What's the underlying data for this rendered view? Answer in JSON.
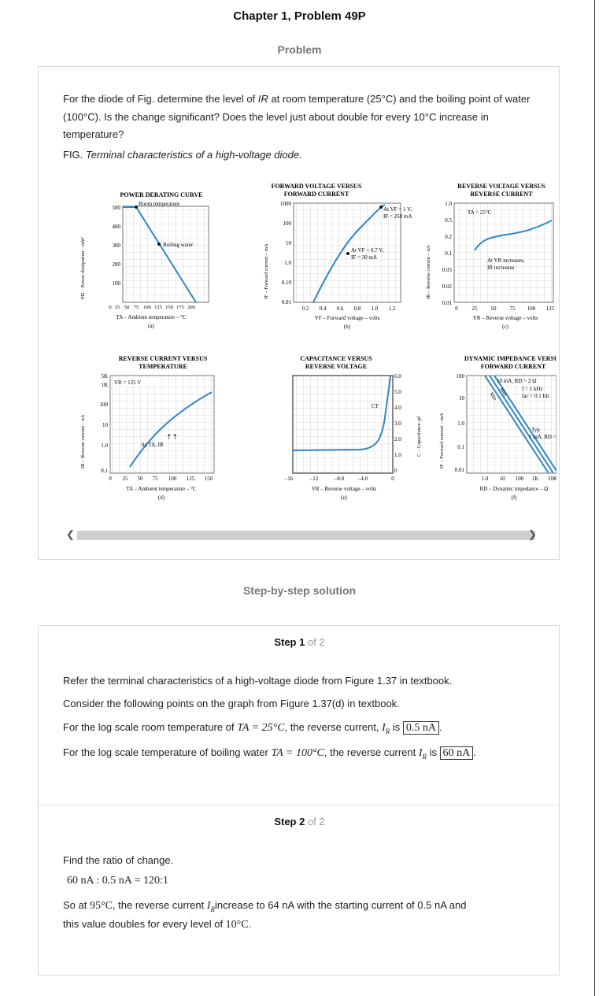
{
  "page": {
    "title": "Chapter 1, Problem 49P",
    "problem_label": "Problem",
    "solution_label": "Step-by-step solution"
  },
  "problem": {
    "text_1": "For the diode of Fig. determine the level of ",
    "text_ir": "IR",
    "text_2": " at room temperature (25°C) and the boiling point of water (100°C). Is the change significant? Does the level just about double for every 10°C increase in temperature?",
    "fig_prefix": "FIG. ",
    "fig_caption": "Terminal characteristics of a high-voltage diode."
  },
  "figure": {
    "a": {
      "title1": "POWER DERATING CURVE",
      "ylabel": "PD – Power dissipation – mW",
      "xlabel": "TA – Ambient temperature – °C",
      "tag": "(a)",
      "ann1": "Room temperature",
      "ann2": "Boiling water",
      "yticks": [
        "500",
        "400",
        "300",
        "200",
        "100"
      ],
      "xticks": [
        "0",
        "25",
        "50",
        "75",
        "100",
        "125",
        "150",
        "175",
        "200"
      ]
    },
    "b": {
      "title1": "FORWARD VOLTAGE VERSUS",
      "title2": "FORWARD CURRENT",
      "ylabel": "IF – Forward current – mA",
      "xlabel": "VF – Forward voltage – volts",
      "tag": "(b)",
      "ann1a": "At VF = 1 V,",
      "ann1b": "IF = 250 mA",
      "ann2a": "At VF = 0.7 V,",
      "ann2b": "IF = 30 mA",
      "yticks": [
        "1000",
        "100",
        "10",
        "1.0",
        "0.10",
        "0.01"
      ],
      "xticks": [
        "0.2",
        "0.4",
        "0.6",
        "0.8",
        "1.0",
        "1.2"
      ]
    },
    "c": {
      "title1": "REVERSE VOLTAGE VERSUS",
      "title2": "REVERSE CURRENT",
      "ylabel": "IR – Reverse current – nA",
      "xlabel": "VR – Reverse voltage – volts",
      "tag": "(c)",
      "ann1": "TA = 25°C",
      "ann2a": "At VR increases,",
      "ann2b": "IR increases",
      "yticks": [
        "1.0",
        "0.5",
        "0.2",
        "0.1",
        "0.05",
        "0.02",
        "0.01"
      ],
      "xticks": [
        "0",
        "25",
        "50",
        "75",
        "100",
        "125"
      ]
    },
    "d": {
      "title1": "REVERSE CURRENT VERSUS",
      "title2": "TEMPERATURE",
      "ylabel": "IR – Reverse current – nA",
      "xlabel": "TA – Ambient temperature – °C",
      "tag": "(d)",
      "ann1": "VR = 125 V",
      "ann2": "As TA, IR",
      "yticks": [
        "5K",
        "1K",
        "100",
        "10",
        "1.0",
        "0.1"
      ],
      "xticks": [
        "0",
        "25",
        "50",
        "75",
        "100",
        "125",
        "150"
      ]
    },
    "e": {
      "title1": "CAPACITANCE VERSUS",
      "title2": "REVERSE VOLTAGE",
      "ylabel": "C – Capacitance–pf",
      "xlabel": "VR – Reverse voltage – volts",
      "tag": "(e)",
      "ann1": "CT",
      "yticks": [
        "6.0",
        "5.0",
        "4.0",
        "3.0",
        "2.0",
        "1.0",
        "0"
      ],
      "xticks": [
        "–16",
        "–12",
        "–8.0",
        "–4.0",
        "0"
      ]
    },
    "f": {
      "title1": "DYNAMIC IMPEDANCE VERSUS",
      "title2": "FORWARD CURRENT",
      "ylabel": "IF – Forward current – mA",
      "xlabel": "RD – Dynamic impedance – Ω",
      "tag": "(f)",
      "ann1": "10 mA, RD = 2 Ω",
      "ann2": "f = 1 kHz",
      "ann3": "Iac = 0.1 Idc",
      "ann4": "Typ",
      "ann5": "1 mA, RD = 50",
      "ann6": "Max",
      "ann7": "Min",
      "yticks": [
        "100",
        "10",
        "1.0",
        "0.1",
        "0.01"
      ],
      "xticks": [
        "1.0",
        "10",
        "100",
        "1K",
        "10K"
      ]
    }
  },
  "step1": {
    "label": "Step 1",
    "of": "of 2",
    "line1": "Refer the terminal characteristics of a high-voltage diode from Figure 1.37 in textbook.",
    "line2": "Consider the following points on the graph from Figure 1.37(d) in textbook.",
    "line3a": "For the log scale room temperature of ",
    "line3m": "TA = 25°C",
    "line3b": ", the reverse current, ",
    "line3c": " is ",
    "line3box": "0.5 nA",
    "line4a": "For the log scale temperature of boiling water ",
    "line4m": "TA = 100°C",
    "line4b": ", the reverse current ",
    "line4c": " is ",
    "line4box": "60 nA"
  },
  "step2": {
    "label": "Step 2",
    "of": "of 2",
    "line1": "Find the ratio of change.",
    "ratio": "60 nA : 0.5 nA = 120:1",
    "line3a": "So at ",
    "line3m": "95°C",
    "line3b": ", the reverse current ",
    "line3c": "increase to 64 nA with the starting current of 0.5 nA and",
    "line4a": "this value doubles for every level of ",
    "line4m": "10°C",
    "line4b": "."
  },
  "colors": {
    "curve": "#2f86c9",
    "accent": "#111111",
    "muted": "#777777"
  }
}
